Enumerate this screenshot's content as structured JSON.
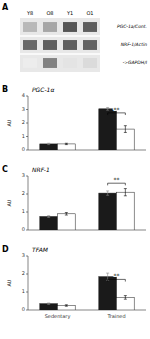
{
  "chart_data": [
    {
      "type": "heatmap",
      "label": "A",
      "categories": [
        "Y8",
        "O8",
        "Y1",
        "O1"
      ],
      "rows": [
        "PGC-1a/Cont.",
        "NRF-1/Actin",
        "->GAPDH/I"
      ],
      "cells": [
        [
          0.4,
          0.5,
          0.95,
          0.9
        ],
        [
          0.85,
          0.9,
          0.9,
          0.88
        ],
        [
          0.1,
          0.7,
          0.15,
          0.2
        ]
      ]
    },
    {
      "type": "bar",
      "label": "B",
      "title": "PGC-1α",
      "ylabel": "AU",
      "categories": [
        "Sedentary",
        "Trained"
      ],
      "series": [
        {
          "color": "#1a1a1a",
          "values": [
            0.45,
            3.05
          ],
          "errors": [
            0.05,
            0.1
          ]
        },
        {
          "color": "#ffffff",
          "values": [
            0.45,
            1.55
          ],
          "errors": [
            0.05,
            0.25
          ]
        }
      ],
      "ylim": [
        0,
        4
      ],
      "yticks": [
        0,
        1,
        2,
        3,
        4
      ],
      "grid": false,
      "tick_labels": "y",
      "annotations": [
        {
          "text": "**",
          "y": 2.75,
          "category": "Trained"
        }
      ]
    },
    {
      "type": "bar",
      "label": "C",
      "title": "NRF-1",
      "ylabel": "AU",
      "categories": [
        "Sedentary",
        "Trained"
      ],
      "series": [
        {
          "color": "#1a1a1a",
          "values": [
            0.75,
            2.05
          ],
          "errors": [
            0.05,
            0.12
          ]
        },
        {
          "color": "#ffffff",
          "values": [
            0.9,
            2.1
          ],
          "errors": [
            0.07,
            0.2
          ]
        }
      ],
      "ylim": [
        0,
        3
      ],
      "yticks": [
        0,
        1,
        2,
        3
      ],
      "grid": false,
      "tick_labels": "y",
      "annotations": [
        {
          "text": "**",
          "y": 2.6,
          "category": "Trained"
        }
      ]
    },
    {
      "type": "bar",
      "label": "D",
      "title": "TFAM",
      "ylabel": "AU",
      "categories": [
        "Sedentary",
        "Trained"
      ],
      "series": [
        {
          "color": "#1a1a1a",
          "values": [
            0.35,
            1.85
          ],
          "errors": [
            0.04,
            0.2
          ]
        },
        {
          "color": "#ffffff",
          "values": [
            0.25,
            0.7
          ],
          "errors": [
            0.04,
            0.1
          ]
        }
      ],
      "ylim": [
        0,
        3
      ],
      "yticks": [
        0,
        1,
        2,
        3
      ],
      "grid": false,
      "annotations": [
        {
          "text": "**",
          "y": 1.7,
          "category": "Trained"
        }
      ]
    }
  ]
}
